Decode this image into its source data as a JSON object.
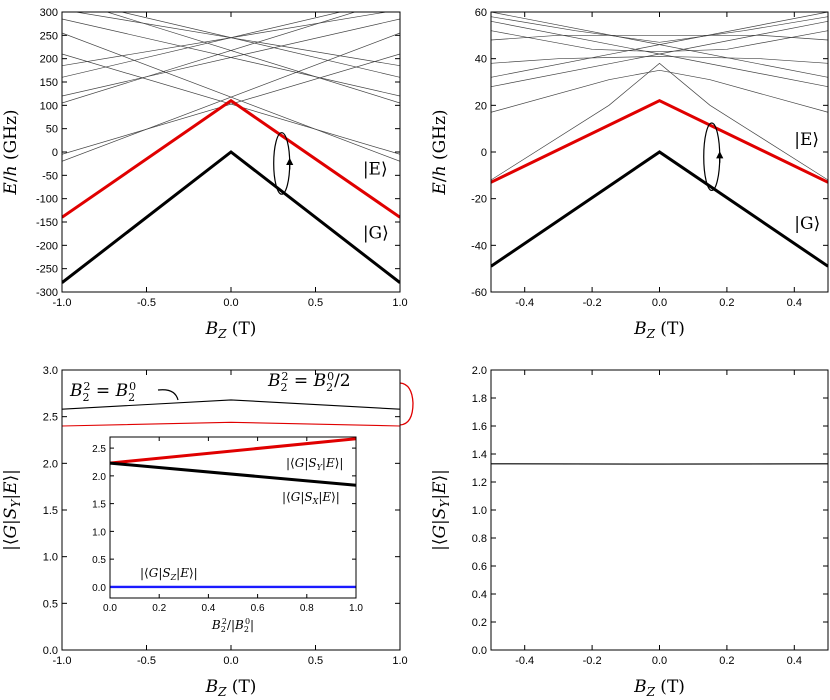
{
  "colors": {
    "ground": "#000000",
    "excited": "#e00000",
    "blue": "#1a1aff",
    "thin": "#444444"
  },
  "chart_data": [
    {
      "id": "top-left",
      "type": "line",
      "xlabel": "B_Z (T)",
      "ylabel": "E/h (GHz)",
      "xlim": [
        -1,
        1
      ],
      "ylim": [
        -300,
        300
      ],
      "xticks": [
        -1,
        -0.5,
        0,
        0.5,
        1
      ],
      "xtick_labels": [
        "-1.0",
        "-0.5",
        "0.0",
        "0.5",
        "1.0"
      ],
      "yticks": [
        -300,
        -250,
        -200,
        -150,
        -100,
        -50,
        0,
        50,
        100,
        150,
        200,
        250,
        300
      ],
      "ytick_labels": [
        "-300",
        "-250",
        "-200",
        "-150",
        "-100",
        "-50",
        "0",
        "50",
        "100",
        "150",
        "200",
        "250",
        "300"
      ],
      "series": [
        {
          "name": "|G⟩",
          "role": "ground",
          "x": [
            -1,
            0,
            1
          ],
          "y": [
            -280,
            0,
            -280
          ]
        },
        {
          "name": "|E⟩",
          "role": "excited",
          "x": [
            -1,
            0,
            1
          ],
          "y": [
            -140,
            110,
            -140
          ]
        }
      ],
      "background_lines": [
        {
          "x": [
            -1,
            1
          ],
          "y": [
            255,
            -20
          ]
        },
        {
          "x": [
            -1,
            1
          ],
          "y": [
            -20,
            255
          ]
        },
        {
          "x": [
            -1,
            1
          ],
          "y": [
            285,
            120
          ]
        },
        {
          "x": [
            -1,
            1
          ],
          "y": [
            120,
            285
          ]
        },
        {
          "x": [
            -1,
            1
          ],
          "y": [
            210,
            -5
          ]
        },
        {
          "x": [
            -1,
            1
          ],
          "y": [
            -5,
            210
          ]
        },
        {
          "x": [
            -1,
            1
          ],
          "y": [
            185,
            305
          ]
        },
        {
          "x": [
            -1,
            1
          ],
          "y": [
            305,
            185
          ]
        },
        {
          "x": [
            -1,
            1
          ],
          "y": [
            105,
            330
          ]
        },
        {
          "x": [
            -1,
            1
          ],
          "y": [
            330,
            105
          ]
        },
        {
          "x": [
            -1,
            1
          ],
          "y": [
            160,
            330
          ]
        },
        {
          "x": [
            -1,
            1
          ],
          "y": [
            330,
            160
          ]
        }
      ],
      "loop": {
        "x": 0.3,
        "y": 0
      },
      "labels": [
        {
          "text": "|E⟩",
          "x": 0.78,
          "y": -48,
          "role": "excited"
        },
        {
          "text": "|G⟩",
          "x": 0.78,
          "y": -185,
          "role": "ground"
        }
      ]
    },
    {
      "id": "top-right",
      "type": "line",
      "xlabel": "B_Z (T)",
      "ylabel": "E/h (GHz)",
      "xlim": [
        -0.5,
        0.5
      ],
      "ylim": [
        -60,
        60
      ],
      "xticks": [
        -0.4,
        -0.2,
        0,
        0.2,
        0.4
      ],
      "xtick_labels": [
        "-0.4",
        "-0.2",
        "0.0",
        "0.2",
        "0.4"
      ],
      "yticks": [
        -60,
        -40,
        -20,
        0,
        20,
        40,
        60
      ],
      "ytick_labels": [
        "-60",
        "-40",
        "-20",
        "0",
        "20",
        "40",
        "60"
      ],
      "series": [
        {
          "name": "|G⟩",
          "role": "ground",
          "x": [
            -0.5,
            0,
            0.5
          ],
          "y": [
            -49,
            0,
            -49
          ]
        },
        {
          "name": "|E⟩",
          "role": "excited",
          "x": [
            -0.5,
            0,
            0.5
          ],
          "y": [
            -13,
            22,
            -13
          ]
        }
      ],
      "background_lines": [
        {
          "x": [
            -0.5,
            -0.15,
            0,
            0.15,
            0.5
          ],
          "y": [
            17,
            31,
            35,
            31,
            17
          ]
        },
        {
          "x": [
            -0.5,
            -0.15,
            0,
            0.15,
            0.5
          ],
          "y": [
            -12,
            20,
            38,
            20,
            -12
          ]
        },
        {
          "x": [
            -0.5,
            -0.2,
            0,
            0.2,
            0.5
          ],
          "y": [
            52,
            44,
            43,
            44,
            52
          ]
        },
        {
          "x": [
            -0.5,
            -0.25,
            0,
            0.25,
            0.5
          ],
          "y": [
            58,
            52,
            47,
            52,
            58
          ]
        },
        {
          "x": [
            -0.5,
            -0.3,
            0,
            0.3,
            0.5
          ],
          "y": [
            48,
            50,
            50,
            50,
            48
          ]
        },
        {
          "x": [
            -0.5,
            -0.3,
            0,
            0.3,
            0.5
          ],
          "y": [
            38,
            40,
            41,
            40,
            38
          ]
        },
        {
          "x": [
            -0.5,
            0.5
          ],
          "y": [
            56,
            28
          ]
        },
        {
          "x": [
            -0.5,
            0.5
          ],
          "y": [
            28,
            56
          ]
        },
        {
          "x": [
            -0.5,
            0.5
          ],
          "y": [
            60,
            32
          ]
        },
        {
          "x": [
            -0.5,
            0.5
          ],
          "y": [
            32,
            60
          ]
        }
      ],
      "loop": {
        "x": 0.155,
        "y": 0
      },
      "labels": [
        {
          "text": "|E⟩",
          "x": 0.4,
          "y": 3,
          "role": "excited"
        },
        {
          "text": "|G⟩",
          "x": 0.4,
          "y": -33,
          "role": "ground"
        }
      ]
    },
    {
      "id": "bottom-left",
      "type": "line",
      "xlabel": "B_Z (T)",
      "ylabel": "|⟨G|S_Y|E⟩|",
      "xlim": [
        -1,
        1
      ],
      "ylim": [
        0,
        3
      ],
      "xticks": [
        -1,
        -0.5,
        0,
        0.5,
        1
      ],
      "xtick_labels": [
        "-1.0",
        "-0.5",
        "0.0",
        "0.5",
        "1.0"
      ],
      "yticks": [
        0,
        0.5,
        1,
        1.5,
        2,
        2.5,
        3
      ],
      "ytick_labels": [
        "0.0",
        "0.5",
        "1.0",
        "1.5",
        "2.0",
        "2.5",
        "3.0"
      ],
      "series": [
        {
          "name": "B_2^2 = B_2^0",
          "role": "thin-black",
          "x": [
            -1,
            0,
            1
          ],
          "y": [
            2.58,
            2.68,
            2.58
          ]
        },
        {
          "name": "B_2^2 = B_2^0/2",
          "role": "thin-red",
          "x": [
            -1,
            0,
            1
          ],
          "y": [
            2.4,
            2.44,
            2.4
          ]
        }
      ],
      "inset": {
        "xlabel": "B_2^2/|B_2^0|",
        "xlim": [
          0,
          1
        ],
        "ylim": [
          -0.2,
          2.7
        ],
        "xticks": [
          0,
          0.2,
          0.4,
          0.6,
          0.8,
          1
        ],
        "xtick_labels": [
          "0.0",
          "0.2",
          "0.4",
          "0.6",
          "0.8",
          "1.0"
        ],
        "yticks": [
          0,
          0.5,
          1,
          1.5,
          2,
          2.5
        ],
        "ytick_labels": [
          "0.0",
          "0.5",
          "1.0",
          "1.5",
          "2.0",
          "2.5"
        ],
        "series": [
          {
            "name": "|⟨G|S_Y|E⟩|",
            "role": "excited",
            "x": [
              0,
              1
            ],
            "y": [
              2.23,
              2.67
            ]
          },
          {
            "name": "|⟨G|S_X|E⟩|",
            "role": "ground",
            "x": [
              0,
              1
            ],
            "y": [
              2.23,
              1.83
            ]
          },
          {
            "name": "|⟨G|S_Z|E⟩|",
            "role": "blue",
            "x": [
              0,
              1
            ],
            "y": [
              0,
              0
            ]
          }
        ]
      }
    },
    {
      "id": "bottom-right",
      "type": "line",
      "xlabel": "B_Z (T)",
      "ylabel": "|⟨G|S_Y|E⟩|",
      "xlim": [
        -0.5,
        0.5
      ],
      "ylim": [
        0,
        2
      ],
      "xticks": [
        -0.4,
        -0.2,
        0,
        0.2,
        0.4
      ],
      "xtick_labels": [
        "-0.4",
        "-0.2",
        "0.0",
        "0.2",
        "0.4"
      ],
      "yticks": [
        0,
        0.2,
        0.4,
        0.6,
        0.8,
        1,
        1.2,
        1.4,
        1.6,
        1.8,
        2
      ],
      "ytick_labels": [
        "0.0",
        "0.2",
        "0.4",
        "0.6",
        "0.8",
        "1.0",
        "1.2",
        "1.4",
        "1.6",
        "1.8",
        "2.0"
      ],
      "series": [
        {
          "name": "|⟨G|S_Y|E⟩|",
          "role": "thin-black",
          "x": [
            -0.5,
            0,
            0.5
          ],
          "y": [
            1.33,
            1.328,
            1.33
          ]
        }
      ]
    }
  ]
}
